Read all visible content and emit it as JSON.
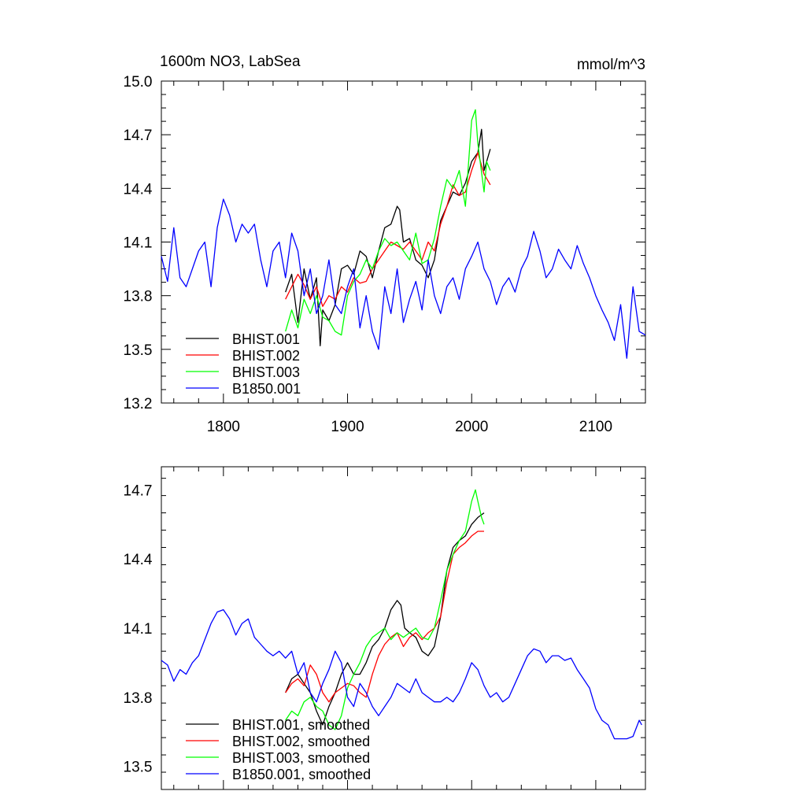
{
  "chart_data": [
    {
      "type": "line",
      "title": "1600m NO3, LabSea",
      "units": "mmol/m^3",
      "xlim": [
        1750,
        2140
      ],
      "ylim": [
        13.2,
        15.0
      ],
      "xticks": [
        1800,
        1900,
        2000,
        2100
      ],
      "xtick_labels": [
        "1800",
        "1900",
        "2000",
        "2100"
      ],
      "yticks": [
        13.2,
        13.5,
        13.8,
        14.1,
        14.4,
        14.7,
        15.0
      ],
      "ytick_labels": [
        "13.2",
        "13.5",
        "13.8",
        "14.1",
        "14.4",
        "14.7",
        "15.0"
      ],
      "legend_position": "bottom-left",
      "series": [
        {
          "name": "BHIST.001",
          "color": "#000000",
          "x": [
            1850,
            1855,
            1860,
            1865,
            1870,
            1875,
            1878,
            1880,
            1885,
            1890,
            1895,
            1900,
            1905,
            1910,
            1915,
            1920,
            1925,
            1930,
            1935,
            1940,
            1942,
            1945,
            1950,
            1955,
            1960,
            1965,
            1970,
            1975,
            1980,
            1985,
            1990,
            1995,
            2000,
            2005,
            2008,
            2010,
            2015
          ],
          "y": [
            13.82,
            13.92,
            13.65,
            13.95,
            13.78,
            13.9,
            13.52,
            13.72,
            13.66,
            13.75,
            13.95,
            13.97,
            13.92,
            14.05,
            14.02,
            13.9,
            14.05,
            14.18,
            14.2,
            14.3,
            14.28,
            14.1,
            14.12,
            14.0,
            13.97,
            13.9,
            14.0,
            14.22,
            14.3,
            14.38,
            14.36,
            14.43,
            14.55,
            14.6,
            14.73,
            14.5,
            14.62
          ]
        },
        {
          "name": "BHIST.002",
          "color": "#ff0000",
          "x": [
            1850,
            1855,
            1860,
            1865,
            1870,
            1875,
            1880,
            1885,
            1890,
            1895,
            1900,
            1905,
            1910,
            1915,
            1920,
            1925,
            1930,
            1935,
            1940,
            1945,
            1950,
            1955,
            1960,
            1965,
            1970,
            1975,
            1980,
            1985,
            1990,
            1995,
            2000,
            2005,
            2010,
            2015
          ],
          "y": [
            13.78,
            13.85,
            13.92,
            13.86,
            13.78,
            13.85,
            13.74,
            13.8,
            13.78,
            13.85,
            13.82,
            13.9,
            13.87,
            13.88,
            13.95,
            14.0,
            14.05,
            14.1,
            14.08,
            14.06,
            14.1,
            14.05,
            14.0,
            14.1,
            14.05,
            14.2,
            14.3,
            14.42,
            14.36,
            14.38,
            14.5,
            14.6,
            14.48,
            14.42
          ]
        },
        {
          "name": "BHIST.003",
          "color": "#00ff00",
          "x": [
            1850,
            1855,
            1860,
            1865,
            1870,
            1875,
            1880,
            1885,
            1890,
            1895,
            1900,
            1905,
            1910,
            1915,
            1920,
            1925,
            1930,
            1935,
            1940,
            1945,
            1950,
            1955,
            1960,
            1965,
            1970,
            1975,
            1980,
            1985,
            1990,
            1995,
            2000,
            2003,
            2005,
            2010,
            2012,
            2015
          ],
          "y": [
            13.6,
            13.72,
            13.62,
            13.78,
            13.7,
            13.8,
            13.68,
            13.66,
            13.6,
            13.58,
            13.8,
            13.88,
            13.92,
            14.0,
            13.95,
            14.05,
            14.12,
            14.08,
            14.1,
            14.05,
            14.0,
            14.15,
            13.98,
            14.0,
            14.12,
            14.3,
            14.45,
            14.4,
            14.5,
            14.3,
            14.78,
            14.84,
            14.65,
            14.38,
            14.55,
            14.5
          ]
        },
        {
          "name": "B1850.001",
          "color": "#0000ff",
          "x": [
            1750,
            1755,
            1760,
            1765,
            1770,
            1775,
            1780,
            1785,
            1790,
            1795,
            1800,
            1805,
            1810,
            1815,
            1820,
            1825,
            1830,
            1835,
            1840,
            1845,
            1850,
            1855,
            1860,
            1865,
            1870,
            1875,
            1880,
            1885,
            1890,
            1895,
            1900,
            1905,
            1910,
            1915,
            1920,
            1925,
            1930,
            1935,
            1940,
            1945,
            1950,
            1955,
            1960,
            1965,
            1970,
            1975,
            1980,
            1985,
            1990,
            1995,
            2000,
            2005,
            2010,
            2015,
            2020,
            2025,
            2030,
            2035,
            2040,
            2045,
            2050,
            2055,
            2060,
            2065,
            2070,
            2075,
            2080,
            2085,
            2090,
            2095,
            2100,
            2105,
            2110,
            2115,
            2120,
            2125,
            2130,
            2135,
            2140
          ],
          "y": [
            14.02,
            13.88,
            14.18,
            13.9,
            13.85,
            13.95,
            14.05,
            14.1,
            13.85,
            14.18,
            14.34,
            14.25,
            14.1,
            14.2,
            14.15,
            14.2,
            14.0,
            13.85,
            14.05,
            14.1,
            13.9,
            14.15,
            14.05,
            13.8,
            13.95,
            13.7,
            13.8,
            14.0,
            13.75,
            13.7,
            13.85,
            13.95,
            13.62,
            13.8,
            13.6,
            13.5,
            13.85,
            13.7,
            13.95,
            13.65,
            13.78,
            13.88,
            13.72,
            14.0,
            13.8,
            13.7,
            13.85,
            13.9,
            13.78,
            13.95,
            14.02,
            14.1,
            13.95,
            13.88,
            13.75,
            13.85,
            13.9,
            13.82,
            13.95,
            14.02,
            14.16,
            14.05,
            13.9,
            13.95,
            14.06,
            14.0,
            13.95,
            14.08,
            13.98,
            13.9,
            13.8,
            13.72,
            13.65,
            13.55,
            13.75,
            13.45,
            13.85,
            13.6,
            13.58
          ]
        }
      ]
    },
    {
      "type": "line",
      "title": "",
      "xlim": [
        1750,
        2140
      ],
      "ylim": [
        13.4,
        14.8
      ],
      "xticks": [
        1800,
        1900,
        2000,
        2100
      ],
      "yticks": [
        13.5,
        13.8,
        14.1,
        14.4,
        14.7
      ],
      "ytick_labels": [
        "13.5",
        "13.8",
        "14.1",
        "14.4",
        "14.7"
      ],
      "legend_position": "bottom-left",
      "series": [
        {
          "name": "BHIST.001, smoothed",
          "color": "#000000",
          "x": [
            1850,
            1855,
            1860,
            1865,
            1870,
            1875,
            1880,
            1885,
            1890,
            1895,
            1900,
            1905,
            1910,
            1915,
            1920,
            1925,
            1930,
            1935,
            1940,
            1943,
            1946,
            1950,
            1955,
            1960,
            1965,
            1970,
            1975,
            1980,
            1985,
            1990,
            1995,
            2000,
            2005,
            2010
          ],
          "y": [
            13.82,
            13.88,
            13.9,
            13.86,
            13.82,
            13.74,
            13.68,
            13.76,
            13.82,
            13.9,
            13.95,
            13.9,
            13.9,
            13.95,
            14.02,
            14.05,
            14.1,
            14.18,
            14.22,
            14.2,
            14.1,
            14.08,
            14.06,
            14.0,
            13.98,
            14.02,
            14.15,
            14.35,
            14.45,
            14.48,
            14.5,
            14.55,
            14.58,
            14.6
          ]
        },
        {
          "name": "BHIST.002, smoothed",
          "color": "#ff0000",
          "x": [
            1850,
            1855,
            1860,
            1865,
            1870,
            1875,
            1880,
            1885,
            1890,
            1895,
            1900,
            1905,
            1910,
            1915,
            1920,
            1925,
            1930,
            1935,
            1940,
            1945,
            1950,
            1955,
            1960,
            1965,
            1970,
            1975,
            1980,
            1985,
            1990,
            1995,
            2000,
            2005,
            2010
          ],
          "y": [
            13.82,
            13.86,
            13.88,
            13.85,
            13.94,
            13.9,
            13.82,
            13.78,
            13.82,
            13.84,
            13.86,
            13.85,
            13.82,
            13.8,
            13.9,
            13.98,
            14.03,
            14.06,
            14.08,
            14.02,
            14.06,
            14.08,
            14.05,
            14.08,
            14.1,
            14.15,
            14.3,
            14.42,
            14.45,
            14.47,
            14.5,
            14.52,
            14.52
          ]
        },
        {
          "name": "BHIST.003, smoothed",
          "color": "#00ff00",
          "x": [
            1850,
            1855,
            1860,
            1865,
            1870,
            1875,
            1880,
            1885,
            1890,
            1895,
            1900,
            1905,
            1910,
            1915,
            1920,
            1925,
            1930,
            1935,
            1940,
            1945,
            1950,
            1955,
            1960,
            1965,
            1970,
            1975,
            1980,
            1985,
            1990,
            1995,
            2000,
            2003,
            2005,
            2008,
            2010
          ],
          "y": [
            13.7,
            13.74,
            13.72,
            13.78,
            13.8,
            13.76,
            13.74,
            13.68,
            13.66,
            13.72,
            13.84,
            13.9,
            13.95,
            14.02,
            14.06,
            14.08,
            14.1,
            14.05,
            14.08,
            14.06,
            14.08,
            14.1,
            14.06,
            14.05,
            14.1,
            14.22,
            14.35,
            14.42,
            14.48,
            14.52,
            14.65,
            14.7,
            14.65,
            14.58,
            14.55
          ]
        },
        {
          "name": "B1850.001, smoothed",
          "color": "#0000ff",
          "x": [
            1750,
            1755,
            1760,
            1765,
            1770,
            1775,
            1780,
            1785,
            1790,
            1795,
            1800,
            1805,
            1810,
            1815,
            1820,
            1825,
            1830,
            1835,
            1840,
            1845,
            1850,
            1855,
            1860,
            1865,
            1870,
            1875,
            1880,
            1885,
            1890,
            1895,
            1900,
            1905,
            1910,
            1915,
            1920,
            1925,
            1930,
            1935,
            1940,
            1945,
            1950,
            1955,
            1960,
            1965,
            1970,
            1975,
            1980,
            1985,
            1990,
            1995,
            2000,
            2005,
            2010,
            2015,
            2020,
            2025,
            2030,
            2035,
            2040,
            2045,
            2050,
            2055,
            2060,
            2065,
            2070,
            2075,
            2080,
            2085,
            2090,
            2095,
            2100,
            2105,
            2110,
            2115,
            2120,
            2125,
            2130,
            2135,
            2137
          ],
          "y": [
            13.96,
            13.94,
            13.87,
            13.92,
            13.9,
            13.95,
            13.98,
            14.05,
            14.12,
            14.17,
            14.18,
            14.14,
            14.07,
            14.12,
            14.14,
            14.06,
            14.03,
            14.0,
            13.98,
            14.0,
            13.97,
            14.0,
            13.9,
            13.95,
            13.82,
            13.78,
            13.86,
            13.92,
            14.0,
            13.95,
            13.8,
            13.76,
            13.86,
            13.82,
            13.76,
            13.72,
            13.76,
            13.8,
            13.86,
            13.84,
            13.82,
            13.88,
            13.82,
            13.8,
            13.78,
            13.78,
            13.8,
            13.78,
            13.82,
            13.88,
            13.95,
            13.92,
            13.85,
            13.8,
            13.82,
            13.78,
            13.8,
            13.86,
            13.92,
            13.98,
            14.01,
            14.0,
            13.95,
            13.98,
            13.98,
            13.96,
            13.97,
            13.92,
            13.88,
            13.84,
            13.75,
            13.7,
            13.68,
            13.62,
            13.62,
            13.62,
            13.63,
            13.7,
            13.68
          ]
        }
      ]
    }
  ]
}
